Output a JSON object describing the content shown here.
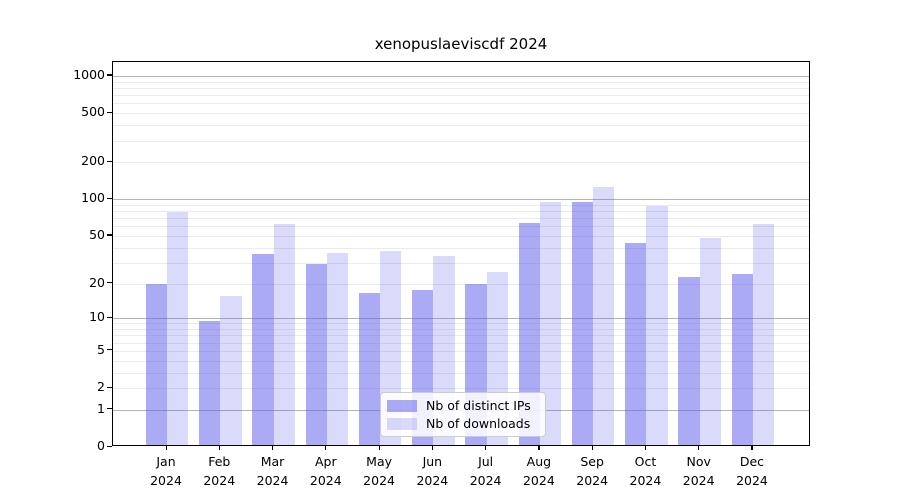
{
  "figure": {
    "title": "xenopuslaeviscdf 2024"
  },
  "chart_data": {
    "type": "bar",
    "title": "xenopuslaeviscdf 2024",
    "xlabel": "",
    "ylabel": "",
    "categories": [
      "Jan 2024",
      "Feb 2024",
      "Mar 2024",
      "Apr 2024",
      "May 2024",
      "Jun 2024",
      "Jul 2024",
      "Aug 2024",
      "Sep 2024",
      "Oct 2024",
      "Nov 2024",
      "Dec 2024"
    ],
    "series": [
      {
        "name": "Nb of distinct IPs",
        "color": "rgba(85,85,235,0.5)",
        "values": [
          19,
          9,
          34,
          28,
          16,
          17,
          19,
          61,
          91,
          42,
          22,
          23
        ]
      },
      {
        "name": "Nb of downloads",
        "color": "rgba(85,85,235,0.22)",
        "values": [
          76,
          15,
          60,
          35,
          36,
          33,
          24,
          91,
          122,
          84,
          46,
          60
        ]
      }
    ],
    "yscale": "log(v+1)",
    "y_ticks": [
      0,
      1,
      2,
      5,
      10,
      20,
      50,
      100,
      200,
      500,
      1000
    ],
    "y_minor_gridlines": [
      2,
      3,
      4,
      5,
      6,
      7,
      8,
      9,
      20,
      30,
      40,
      50,
      60,
      70,
      80,
      90,
      200,
      300,
      400,
      500,
      600,
      700,
      800,
      900
    ],
    "y_major_gridlines": [
      1,
      10,
      100,
      1000
    ],
    "ylim": [
      0,
      1300
    ],
    "grid": true,
    "legend_position": "lower center"
  },
  "colors": {
    "bar_dark": "rgba(85,85,235,0.5)",
    "bar_light": "rgba(85,85,235,0.22)",
    "grid_major": "#b4b4b4",
    "grid_minor": "#ebebeb",
    "spine": "#000000",
    "text": "#000000"
  }
}
